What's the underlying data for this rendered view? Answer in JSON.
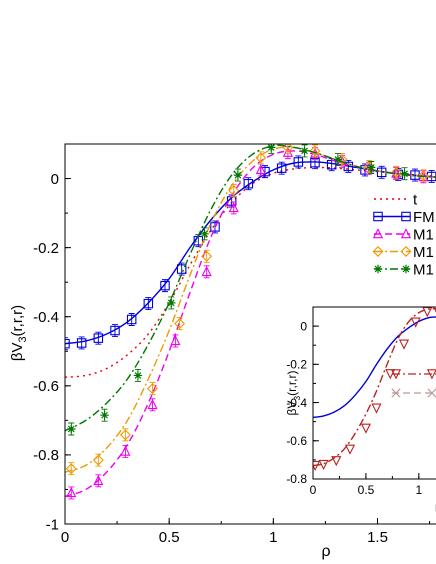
{
  "chart_data": [
    {
      "type": "line",
      "xlabel": "ρ",
      "ylabel_main": "βV",
      "ylabel_sub": "3",
      "ylabel_tail": "(r,r,r)",
      "xlim": [
        0,
        1.8
      ],
      "ylim": [
        -1,
        0.1
      ],
      "xticks": [
        0,
        0.5,
        1,
        1.5
      ],
      "xtick_labels": [
        "0",
        "0.5",
        "1",
        "1.5"
      ],
      "yticks": [
        0,
        -0.2,
        -0.4,
        -0.6,
        -0.8,
        -1
      ],
      "ytick_labels": [
        "0",
        "-0.2",
        "-0.4",
        "-0.6",
        "-0.8",
        "-1"
      ],
      "legend_position": "right",
      "series": [
        {
          "name": "t",
          "color": "#ee0000",
          "style": "dotted",
          "marker": "none",
          "x": [
            0,
            0.1,
            0.2,
            0.3,
            0.4,
            0.5,
            0.6,
            0.7,
            0.8,
            0.9,
            1.0,
            1.1,
            1.2,
            1.3,
            1.4,
            1.5,
            1.6,
            1.7,
            1.8
          ],
          "y": [
            -0.575,
            -0.57,
            -0.55,
            -0.51,
            -0.45,
            -0.36,
            -0.25,
            -0.15,
            -0.07,
            -0.015,
            0.015,
            0.028,
            0.032,
            0.03,
            0.025,
            0.02,
            0.015,
            0.01,
            0.005
          ]
        },
        {
          "name": "FM",
          "color": "#0000dd",
          "style": "solid",
          "marker": "square",
          "x": [
            0,
            0.1,
            0.2,
            0.3,
            0.4,
            0.5,
            0.6,
            0.7,
            0.8,
            0.9,
            1.0,
            1.1,
            1.2,
            1.3,
            1.4,
            1.5,
            1.6,
            1.7,
            1.8
          ],
          "y": [
            -0.478,
            -0.47,
            -0.45,
            -0.415,
            -0.36,
            -0.29,
            -0.2,
            -0.12,
            -0.055,
            -0.01,
            0.025,
            0.045,
            0.048,
            0.042,
            0.032,
            0.022,
            0.014,
            0.008,
            0.004
          ],
          "points_x": [
            0,
            0.08,
            0.16,
            0.24,
            0.32,
            0.4,
            0.48,
            0.56,
            0.64,
            0.72,
            0.8,
            0.88,
            0.96,
            1.04,
            1.12,
            1.2,
            1.28,
            1.36,
            1.44,
            1.52,
            1.6,
            1.68,
            1.76
          ],
          "points_y": [
            -0.478,
            -0.476,
            -0.462,
            -0.44,
            -0.408,
            -0.362,
            -0.31,
            -0.262,
            -0.18,
            -0.14,
            -0.065,
            -0.015,
            0.02,
            0.03,
            0.048,
            0.046,
            0.04,
            0.035,
            0.025,
            0.018,
            0.012,
            0.01,
            0.006
          ]
        },
        {
          "name": "M1",
          "color": "#ee00ee",
          "style": "dashed",
          "marker": "triangle",
          "x": [
            0,
            0.1,
            0.2,
            0.3,
            0.4,
            0.5,
            0.6,
            0.7,
            0.8,
            0.9,
            1.0,
            1.1,
            1.2,
            1.3,
            1.4,
            1.5,
            1.6,
            1.7,
            1.8
          ],
          "y": [
            -0.92,
            -0.9,
            -0.85,
            -0.77,
            -0.65,
            -0.5,
            -0.33,
            -0.17,
            -0.05,
            0.03,
            0.07,
            0.08,
            0.07,
            0.05,
            0.035,
            0.022,
            0.013,
            0.007,
            0.003
          ],
          "points_x": [
            0.03,
            0.16,
            0.29,
            0.42,
            0.53,
            0.68,
            0.81,
            0.94,
            1.07,
            1.2,
            1.33,
            1.46,
            1.59,
            1.72
          ],
          "points_y": [
            -0.91,
            -0.875,
            -0.79,
            -0.655,
            -0.47,
            -0.27,
            -0.085,
            0.025,
            0.075,
            0.072,
            0.05,
            0.03,
            0.015,
            0.005
          ]
        },
        {
          "name": "M1",
          "color": "#ee9900",
          "style": "dashdot",
          "marker": "diamond",
          "x": [
            0,
            0.1,
            0.2,
            0.3,
            0.4,
            0.5,
            0.6,
            0.7,
            0.8,
            0.9,
            1.0,
            1.1,
            1.2,
            1.3,
            1.4,
            1.5,
            1.6,
            1.7,
            1.8
          ],
          "y": [
            -0.85,
            -0.83,
            -0.78,
            -0.7,
            -0.58,
            -0.44,
            -0.28,
            -0.13,
            -0.02,
            0.05,
            0.085,
            0.09,
            0.075,
            0.055,
            0.035,
            0.022,
            0.013,
            0.007,
            0.003
          ],
          "points_x": [
            0.03,
            0.16,
            0.29,
            0.42,
            0.55,
            0.68,
            0.81,
            0.94,
            1.07,
            1.2,
            1.33,
            1.46,
            1.59,
            1.72
          ],
          "points_y": [
            -0.84,
            -0.815,
            -0.742,
            -0.608,
            -0.42,
            -0.225,
            -0.035,
            0.06,
            0.09,
            0.08,
            0.055,
            0.035,
            0.018,
            0.008
          ]
        },
        {
          "name": "M1",
          "color": "#007700",
          "style": "dashdot",
          "marker": "star",
          "x": [
            0,
            0.1,
            0.2,
            0.3,
            0.4,
            0.5,
            0.6,
            0.7,
            0.8,
            0.9,
            1.0,
            1.1,
            1.2,
            1.3,
            1.4,
            1.5,
            1.6,
            1.7,
            1.8
          ],
          "y": [
            -0.73,
            -0.7,
            -0.65,
            -0.58,
            -0.48,
            -0.36,
            -0.22,
            -0.09,
            0.01,
            0.07,
            0.095,
            0.09,
            0.075,
            0.055,
            0.035,
            0.022,
            0.013,
            0.007,
            0.003
          ],
          "points_x": [
            0.03,
            0.19,
            0.35,
            0.51,
            0.67,
            0.83,
            0.99,
            1.15,
            1.31,
            1.47,
            1.63
          ],
          "points_y": [
            -0.725,
            -0.685,
            -0.57,
            -0.36,
            -0.16,
            0.01,
            0.09,
            0.08,
            0.055,
            0.032,
            0.014
          ]
        }
      ]
    },
    {
      "type": "line",
      "ylabel_main": "βV",
      "ylabel_sub": "3",
      "ylabel_tail": "(r,r,r)",
      "xlabel": "ρ",
      "xlim": [
        0,
        1.2
      ],
      "ylim": [
        -0.8,
        0.1
      ],
      "xticks": [
        0,
        0.5,
        1
      ],
      "xtick_labels": [
        "0",
        "0.5",
        "1"
      ],
      "yticks": [
        0,
        -0.2,
        -0.4,
        -0.6,
        -0.8
      ],
      "ytick_labels": [
        "0",
        "-0.2",
        "-0.4",
        "-0.6",
        "-0.8"
      ],
      "series": [
        {
          "color": "#0000dd",
          "style": "solid",
          "marker": "none",
          "x": [
            0,
            0.1,
            0.2,
            0.3,
            0.4,
            0.5,
            0.6,
            0.7,
            0.8,
            0.9,
            1.0,
            1.1,
            1.2
          ],
          "y": [
            -0.478,
            -0.47,
            -0.45,
            -0.415,
            -0.36,
            -0.29,
            -0.2,
            -0.12,
            -0.055,
            -0.01,
            0.025,
            0.045,
            0.048
          ]
        },
        {
          "color": "#bb2222",
          "style": "dashdot",
          "marker": "down-triangle",
          "x": [
            0,
            0.1,
            0.2,
            0.3,
            0.4,
            0.5,
            0.6,
            0.7,
            0.8,
            0.9,
            1.0,
            1.1,
            1.2
          ],
          "y": [
            -0.73,
            -0.72,
            -0.69,
            -0.64,
            -0.56,
            -0.46,
            -0.34,
            -0.2,
            -0.07,
            0.02,
            0.07,
            0.09,
            0.09
          ],
          "points_x": [
            0.02,
            0.1,
            0.22,
            0.35,
            0.5,
            0.6,
            0.73,
            0.86,
            0.97,
            1.08,
            1.17
          ],
          "points_y": [
            -0.73,
            -0.725,
            -0.705,
            -0.645,
            -0.535,
            -0.43,
            -0.25,
            -0.095,
            0.02,
            0.075,
            0.09
          ]
        }
      ],
      "legend_samples": [
        {
          "color": "#bb2222",
          "marker": "down-triangle",
          "style": "dashdot"
        },
        {
          "color": "#bb9999",
          "marker": "x",
          "style": "dashed"
        }
      ]
    }
  ]
}
